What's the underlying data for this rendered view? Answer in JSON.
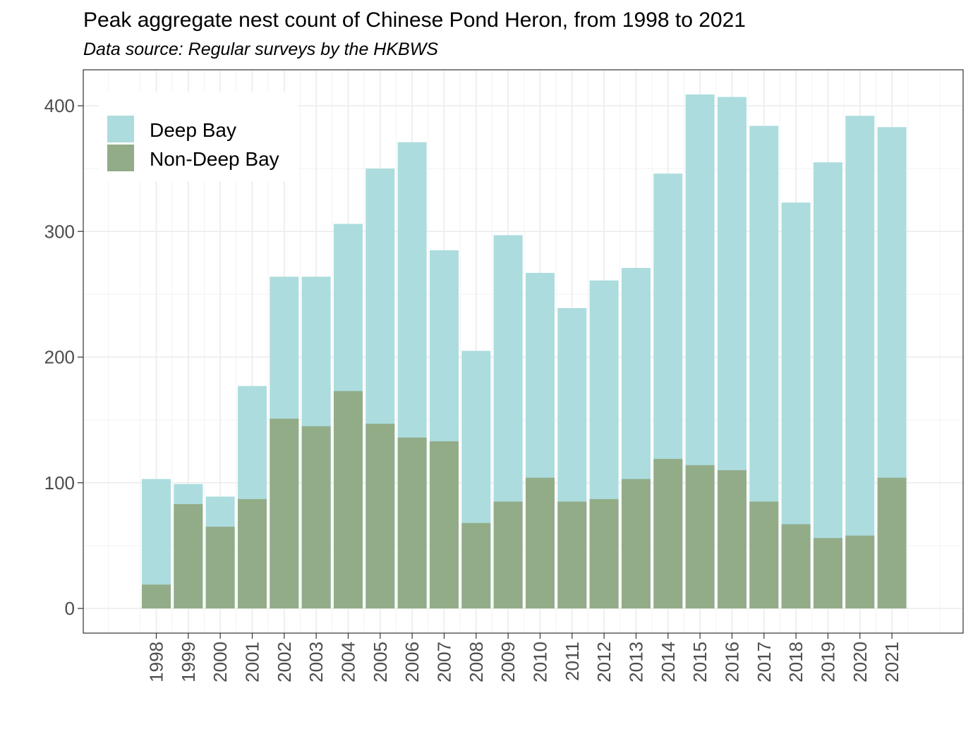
{
  "chart_data": {
    "type": "bar",
    "stacked": false,
    "title": "Peak aggregate nest count of Chinese Pond Heron, from 1998 to 2021",
    "subtitle": "Data source: Regular surveys by the HKBWS",
    "xlabel": "",
    "ylabel": "",
    "ylim": [
      -20,
      430
    ],
    "yticks": [
      0,
      100,
      200,
      300,
      400
    ],
    "grid": true,
    "legend_position": "top-left",
    "categories": [
      "1998",
      "1999",
      "2000",
      "2001",
      "2002",
      "2003",
      "2004",
      "2005",
      "2006",
      "2007",
      "2008",
      "2009",
      "2010",
      "2011",
      "2012",
      "2013",
      "2014",
      "2015",
      "2016",
      "2017",
      "2018",
      "2019",
      "2020",
      "2021"
    ],
    "series": [
      {
        "name": "Deep Bay",
        "color": "#acdcde",
        "values": [
          103,
          99,
          89,
          177,
          264,
          264,
          306,
          350,
          371,
          285,
          205,
          297,
          267,
          239,
          261,
          271,
          346,
          409,
          407,
          384,
          323,
          355,
          392,
          383
        ]
      },
      {
        "name": "Non-Deep Bay",
        "color": "#92ac88",
        "values": [
          19,
          83,
          65,
          87,
          151,
          145,
          173,
          147,
          136,
          133,
          68,
          85,
          104,
          85,
          87,
          103,
          119,
          114,
          110,
          85,
          67,
          56,
          58,
          104
        ]
      }
    ]
  }
}
